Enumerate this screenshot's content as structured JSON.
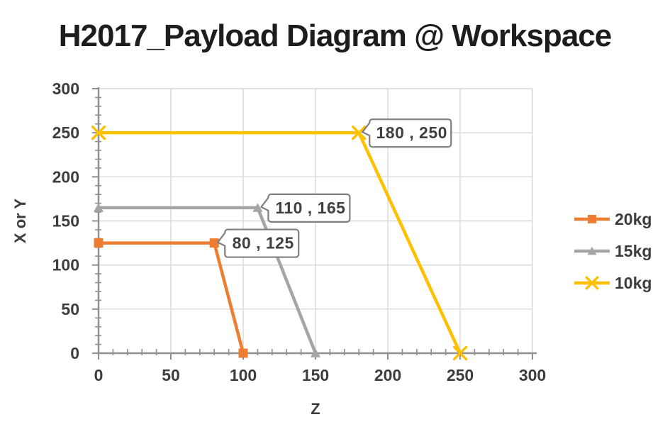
{
  "title": "H2017_Payload Diagram @ Workspace",
  "chart_data": {
    "type": "line",
    "title": "H2017_Payload Diagram @ Workspace",
    "xlabel": "Z",
    "ylabel": "X or Y",
    "xlim": [
      0,
      300
    ],
    "ylim": [
      0,
      300
    ],
    "x_ticks": [
      0,
      50,
      100,
      150,
      200,
      250,
      300
    ],
    "y_ticks": [
      0,
      50,
      100,
      150,
      200,
      250,
      300
    ],
    "minor_tick_step": 10,
    "grid": true,
    "legend_position": "right",
    "series": [
      {
        "name": "20kg",
        "color": "#ED7D31",
        "marker": "square",
        "points": [
          [
            0,
            125
          ],
          [
            80,
            125
          ],
          [
            100,
            0
          ]
        ]
      },
      {
        "name": "15kg",
        "color": "#A5A5A5",
        "marker": "triangle",
        "points": [
          [
            0,
            165
          ],
          [
            110,
            165
          ],
          [
            150,
            0
          ]
        ]
      },
      {
        "name": "10kg",
        "color": "#FFC000",
        "marker": "x",
        "points": [
          [
            0,
            250
          ],
          [
            180,
            250
          ],
          [
            250,
            0
          ]
        ]
      }
    ],
    "annotations": [
      {
        "text": "80 , 125",
        "x": 80,
        "y": 125
      },
      {
        "text": "110 , 165",
        "x": 110,
        "y": 165
      },
      {
        "text": "180 , 250",
        "x": 180,
        "y": 250
      }
    ]
  },
  "colors": {
    "grid": "#D9D9D9",
    "axis": "#8F8F8F",
    "tick_text": "#3d3d3d",
    "title_text": "#1d1d1d",
    "callout_border": "#7F7F7F",
    "callout_fill": "#FFFFFF"
  }
}
